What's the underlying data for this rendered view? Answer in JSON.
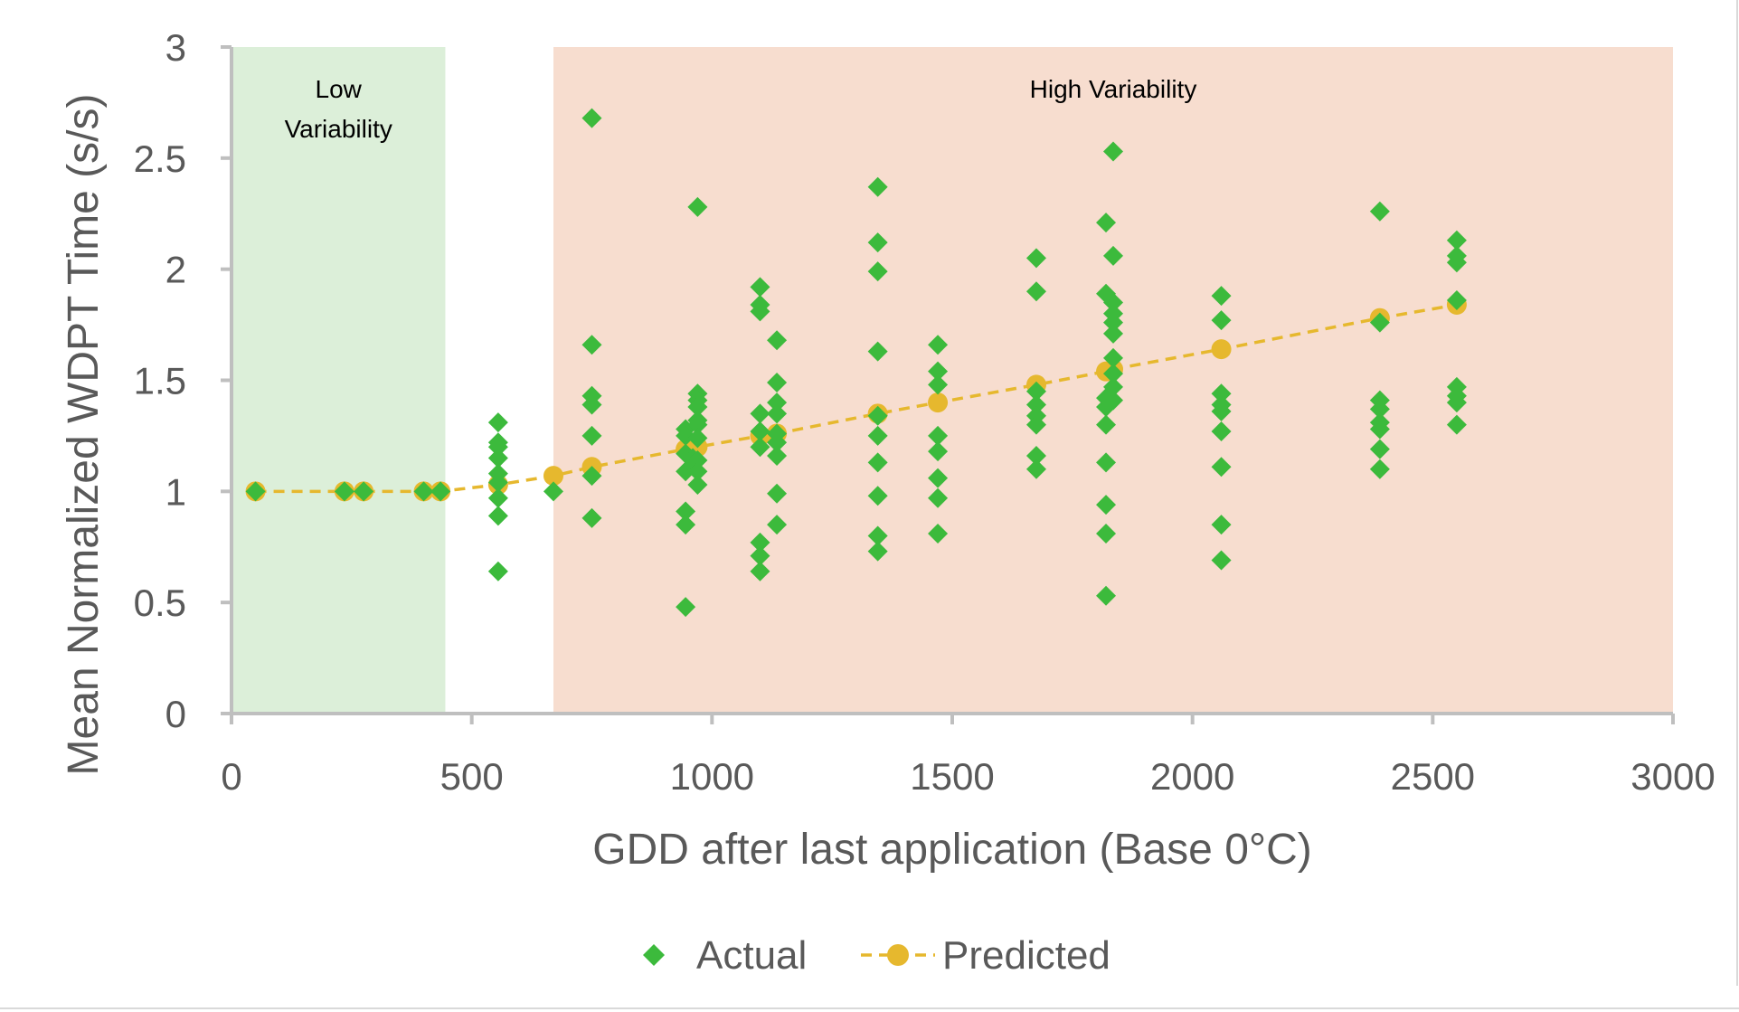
{
  "chart_data": {
    "type": "scatter",
    "xlabel": "GDD after last application (Base 0°C)",
    "ylabel": "Mean Normalized WDPT Time (s/s)",
    "xlim": [
      0,
      3000
    ],
    "ylim": [
      0,
      3
    ],
    "x_ticks": [
      "0",
      "500",
      "1000",
      "1500",
      "2000",
      "2500",
      "3000"
    ],
    "y_ticks": [
      "0",
      "0.5",
      "1",
      "1.5",
      "2",
      "2.5",
      "3"
    ],
    "grid": false,
    "legend_position": "bottom",
    "regions": [
      {
        "label_lines": [
          "Low",
          "Variability"
        ],
        "x_start": 0,
        "x_end": 445,
        "color": "#dcefd9"
      },
      {
        "label_lines": [
          "High Variability"
        ],
        "x_start": 670,
        "x_end": 3000,
        "color": "#f7ddcf"
      }
    ],
    "series": [
      {
        "name": "Actual",
        "marker": "diamond",
        "color": "#3cba3c",
        "points": [
          [
            50,
            1.0
          ],
          [
            235,
            1.0
          ],
          [
            275,
            1.0
          ],
          [
            400,
            1.0
          ],
          [
            435,
            1.0
          ],
          [
            555,
            1.31
          ],
          [
            555,
            1.22
          ],
          [
            555,
            1.2
          ],
          [
            555,
            1.15
          ],
          [
            555,
            1.08
          ],
          [
            555,
            1.04
          ],
          [
            555,
            0.97
          ],
          [
            555,
            0.89
          ],
          [
            555,
            0.64
          ],
          [
            670,
            1.0
          ],
          [
            750,
            2.68
          ],
          [
            750,
            1.66
          ],
          [
            750,
            1.43
          ],
          [
            750,
            1.39
          ],
          [
            750,
            1.25
          ],
          [
            750,
            1.07
          ],
          [
            750,
            0.88
          ],
          [
            945,
            1.28
          ],
          [
            945,
            1.25
          ],
          [
            945,
            1.17
          ],
          [
            945,
            1.09
          ],
          [
            945,
            0.91
          ],
          [
            945,
            0.85
          ],
          [
            945,
            0.48
          ],
          [
            960,
            1.15
          ],
          [
            960,
            1.12
          ],
          [
            970,
            2.28
          ],
          [
            970,
            1.44
          ],
          [
            970,
            1.41
          ],
          [
            970,
            1.38
          ],
          [
            970,
            1.32
          ],
          [
            970,
            1.3
          ],
          [
            970,
            1.24
          ],
          [
            970,
            1.14
          ],
          [
            970,
            1.09
          ],
          [
            970,
            1.03
          ],
          [
            1100,
            1.92
          ],
          [
            1100,
            1.84
          ],
          [
            1100,
            1.81
          ],
          [
            1100,
            1.35
          ],
          [
            1100,
            1.27
          ],
          [
            1100,
            1.2
          ],
          [
            1100,
            0.77
          ],
          [
            1100,
            0.71
          ],
          [
            1100,
            0.64
          ],
          [
            1135,
            1.68
          ],
          [
            1135,
            1.49
          ],
          [
            1135,
            1.4
          ],
          [
            1135,
            1.35
          ],
          [
            1135,
            1.26
          ],
          [
            1135,
            1.22
          ],
          [
            1135,
            1.16
          ],
          [
            1135,
            0.99
          ],
          [
            1135,
            0.85
          ],
          [
            1345,
            2.37
          ],
          [
            1345,
            2.12
          ],
          [
            1345,
            1.99
          ],
          [
            1345,
            1.63
          ],
          [
            1345,
            1.34
          ],
          [
            1345,
            1.25
          ],
          [
            1345,
            1.13
          ],
          [
            1345,
            0.98
          ],
          [
            1345,
            0.8
          ],
          [
            1345,
            0.73
          ],
          [
            1470,
            1.66
          ],
          [
            1470,
            1.54
          ],
          [
            1470,
            1.48
          ],
          [
            1470,
            1.25
          ],
          [
            1470,
            1.18
          ],
          [
            1470,
            1.06
          ],
          [
            1470,
            0.97
          ],
          [
            1470,
            0.81
          ],
          [
            1675,
            2.05
          ],
          [
            1675,
            1.9
          ],
          [
            1675,
            1.45
          ],
          [
            1675,
            1.39
          ],
          [
            1675,
            1.34
          ],
          [
            1675,
            1.3
          ],
          [
            1675,
            1.16
          ],
          [
            1675,
            1.1
          ],
          [
            1820,
            2.21
          ],
          [
            1820,
            1.89
          ],
          [
            1820,
            1.42
          ],
          [
            1820,
            1.38
          ],
          [
            1820,
            1.3
          ],
          [
            1820,
            1.13
          ],
          [
            1820,
            0.94
          ],
          [
            1820,
            0.81
          ],
          [
            1820,
            0.53
          ],
          [
            1835,
            2.53
          ],
          [
            1835,
            2.06
          ],
          [
            1835,
            1.85
          ],
          [
            1835,
            1.8
          ],
          [
            1835,
            1.76
          ],
          [
            1835,
            1.71
          ],
          [
            1835,
            1.6
          ],
          [
            1835,
            1.53
          ],
          [
            1835,
            1.47
          ],
          [
            1835,
            1.41
          ],
          [
            2060,
            1.88
          ],
          [
            2060,
            1.77
          ],
          [
            2060,
            1.44
          ],
          [
            2060,
            1.39
          ],
          [
            2060,
            1.36
          ],
          [
            2060,
            1.27
          ],
          [
            2060,
            1.11
          ],
          [
            2060,
            0.85
          ],
          [
            2060,
            0.69
          ],
          [
            2390,
            2.26
          ],
          [
            2390,
            1.76
          ],
          [
            2390,
            1.41
          ],
          [
            2390,
            1.37
          ],
          [
            2390,
            1.31
          ],
          [
            2390,
            1.28
          ],
          [
            2390,
            1.19
          ],
          [
            2390,
            1.1
          ],
          [
            2550,
            2.13
          ],
          [
            2550,
            2.06
          ],
          [
            2550,
            2.03
          ],
          [
            2550,
            1.86
          ],
          [
            2550,
            1.47
          ],
          [
            2550,
            1.43
          ],
          [
            2550,
            1.4
          ],
          [
            2550,
            1.3
          ]
        ]
      },
      {
        "name": "Predicted",
        "marker": "circle",
        "line": "dashed",
        "color": "#e6b82e",
        "points": [
          [
            50,
            1.0
          ],
          [
            235,
            1.0
          ],
          [
            275,
            1.0
          ],
          [
            400,
            1.0
          ],
          [
            435,
            1.0
          ],
          [
            555,
            1.03
          ],
          [
            670,
            1.07
          ],
          [
            750,
            1.11
          ],
          [
            945,
            1.19
          ],
          [
            960,
            1.19
          ],
          [
            970,
            1.2
          ],
          [
            1100,
            1.25
          ],
          [
            1135,
            1.26
          ],
          [
            1345,
            1.35
          ],
          [
            1470,
            1.4
          ],
          [
            1675,
            1.48
          ],
          [
            1820,
            1.54
          ],
          [
            1835,
            1.55
          ],
          [
            2060,
            1.64
          ],
          [
            2390,
            1.78
          ],
          [
            2550,
            1.84
          ]
        ]
      }
    ]
  }
}
